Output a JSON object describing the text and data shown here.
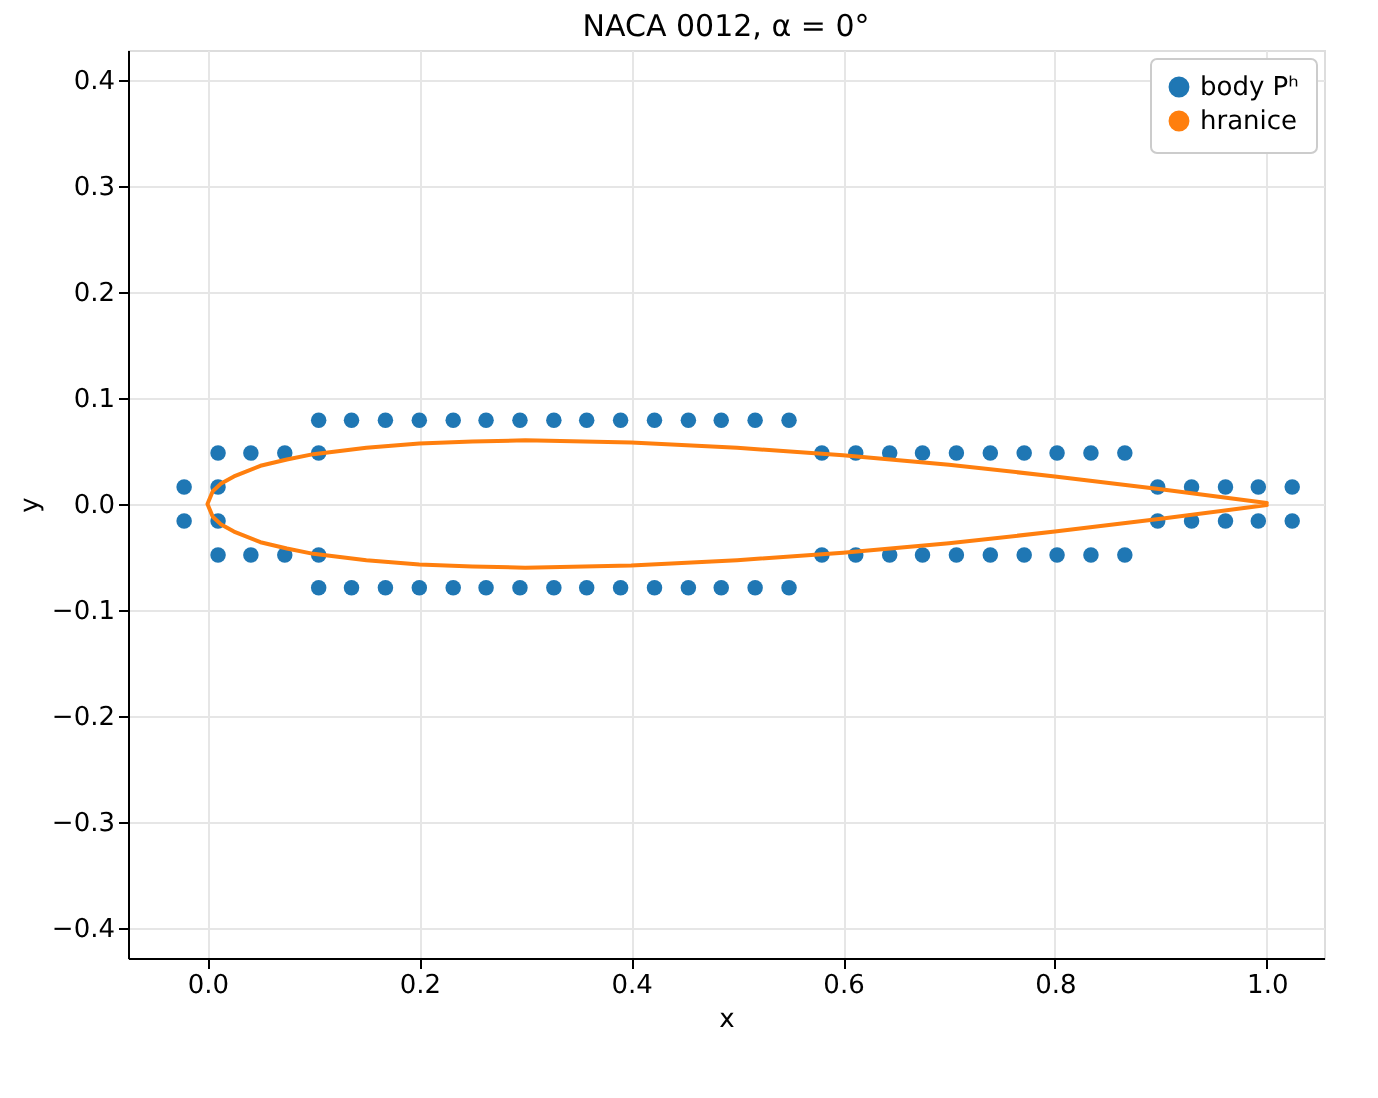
{
  "chart_data": {
    "type": "scatter",
    "title": "NACA 0012, α = 0°",
    "xlabel": "x",
    "ylabel": "y",
    "xlim": [
      -0.075,
      1.054
    ],
    "xticks": [
      {
        "value": 0,
        "label": "0.0"
      },
      0.2,
      0.4,
      0.6,
      0.8,
      {
        "value": 1,
        "label": "1.0"
      }
    ],
    "ylim": [
      -0.428,
      0.428
    ],
    "yticks": [
      -0.4,
      -0.3,
      -0.2,
      -0.1,
      {
        "value": 0,
        "label": "0.0"
      },
      0.1,
      0.2,
      0.3,
      0.4
    ],
    "grid": true,
    "legend": "top right",
    "series": [
      {
        "name": "body Pʰ",
        "type": "scatter",
        "marker": "circle",
        "color": "#1f77b4",
        "x": [
          -0.022,
          -0.022,
          0.01,
          0.01,
          0.01,
          0.01,
          0.041,
          0.041,
          0.073,
          0.073,
          0.105,
          0.105,
          0.105,
          0.105,
          0.136,
          0.136,
          0.168,
          0.168,
          0.2,
          0.2,
          0.232,
          0.232,
          0.263,
          0.263,
          0.295,
          0.295,
          0.327,
          0.327,
          0.358,
          0.358,
          0.39,
          0.39,
          0.422,
          0.422,
          0.454,
          0.454,
          0.485,
          0.485,
          0.517,
          0.517,
          0.549,
          0.549,
          0.58,
          0.58,
          0.612,
          0.612,
          0.644,
          0.644,
          0.675,
          0.675,
          0.707,
          0.707,
          0.739,
          0.739,
          0.771,
          0.771,
          0.802,
          0.802,
          0.834,
          0.834,
          0.866,
          0.866,
          0.897,
          0.897,
          0.929,
          0.929,
          0.961,
          0.961,
          0.992,
          0.992,
          1.024,
          1.024
        ],
        "values": [
          0.016,
          -0.016,
          0.016,
          -0.016,
          0.048,
          -0.048,
          0.048,
          -0.048,
          0.048,
          -0.048,
          0.048,
          -0.048,
          0.079,
          -0.079,
          0.079,
          -0.079,
          0.079,
          -0.079,
          0.079,
          -0.079,
          0.079,
          -0.079,
          0.079,
          -0.079,
          0.079,
          -0.079,
          0.079,
          -0.079,
          0.079,
          -0.079,
          0.079,
          -0.079,
          0.079,
          -0.079,
          0.079,
          -0.079,
          0.079,
          -0.079,
          0.079,
          -0.079,
          0.079,
          -0.079,
          0.048,
          -0.048,
          0.048,
          -0.048,
          0.048,
          -0.048,
          0.048,
          -0.048,
          0.048,
          -0.048,
          0.048,
          -0.048,
          0.048,
          -0.048,
          0.048,
          -0.048,
          0.048,
          -0.048,
          0.048,
          -0.048,
          0.016,
          -0.016,
          0.016,
          -0.016,
          0.016,
          -0.016,
          0.016,
          -0.016,
          0.016,
          -0.016
        ]
      },
      {
        "name": "hranice",
        "type": "line",
        "line_style": "solid",
        "marker": "none",
        "color": "#ff7f0e",
        "x": [
          1.0,
          0.9,
          0.8,
          0.7,
          0.6,
          0.5,
          0.4,
          0.3,
          0.25,
          0.2,
          0.15,
          0.1,
          0.075,
          0.05,
          0.025,
          0.0125,
          0.005,
          0.0,
          0.005,
          0.0125,
          0.025,
          0.05,
          0.075,
          0.1,
          0.15,
          0.2,
          0.25,
          0.3,
          0.4,
          0.5,
          0.6,
          0.7,
          0.8,
          0.9,
          1.0
        ],
        "values": [
          0.001,
          0.014,
          0.026,
          0.037,
          0.046,
          0.053,
          0.058,
          0.06,
          0.059,
          0.057,
          0.053,
          0.047,
          0.042,
          0.036,
          0.026,
          0.019,
          0.012,
          0.0,
          -0.012,
          -0.019,
          -0.026,
          -0.036,
          -0.042,
          -0.047,
          -0.053,
          -0.057,
          -0.059,
          -0.06,
          -0.058,
          -0.053,
          -0.046,
          -0.037,
          -0.026,
          -0.014,
          -0.001
        ]
      }
    ]
  }
}
